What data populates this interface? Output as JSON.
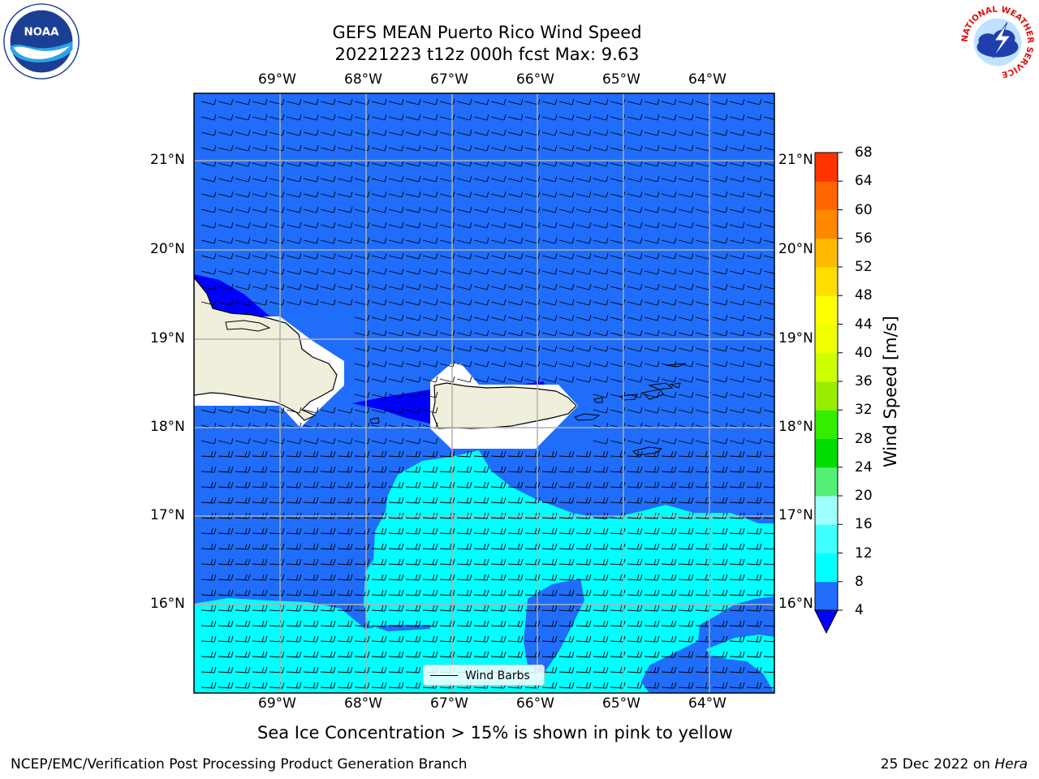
{
  "title": {
    "line1": "GEFS MEAN Puerto Rico Wind Speed",
    "line2": "20221223 t12z 000h fcst   Max: 9.63"
  },
  "map": {
    "lon_labels": [
      "69°W",
      "68°W",
      "67°W",
      "66°W",
      "65°W",
      "64°W"
    ],
    "lat_labels": [
      "21°N",
      "20°N",
      "19°N",
      "18°N",
      "17°N",
      "16°N"
    ],
    "legend_label": "Wind Barbs",
    "colors": {
      "land": "#efefdc",
      "ocean_4_8": "#1f6dfa",
      "ocean_8_12": "#00ffff",
      "below_4": "#0000ff",
      "gridline": "#b0b0b0"
    }
  },
  "colorbar": {
    "label": "Wind Speed [m/s]",
    "ticks": [
      "4",
      "8",
      "12",
      "16",
      "20",
      "24",
      "28",
      "32",
      "36",
      "40",
      "44",
      "48",
      "52",
      "56",
      "60",
      "64",
      "68"
    ],
    "colors": [
      "#1f6dfa",
      "#00ffff",
      "#40ffff",
      "#a0ffff",
      "#55ee77",
      "#00dd00",
      "#33ee00",
      "#99ee00",
      "#ccff00",
      "#eeff00",
      "#ffff00",
      "#ffdd00",
      "#ffbb00",
      "#ff8800",
      "#ff6600",
      "#ff3300",
      "#ff0000"
    ],
    "under_color": "#0000ff"
  },
  "caption": "Sea Ice Concentration > 15% is shown in pink to yellow",
  "footer": {
    "left": "NCEP/EMC/Verification Post Processing Product Generation Branch",
    "right_prefix": "25 Dec 2022 on ",
    "right_machine": "Hera"
  },
  "logos": {
    "left": "noaa-logo",
    "right": "nws-logo",
    "left_text": "NOAA",
    "right_ring_text": "NATIONAL WEATHER SERVICE"
  }
}
